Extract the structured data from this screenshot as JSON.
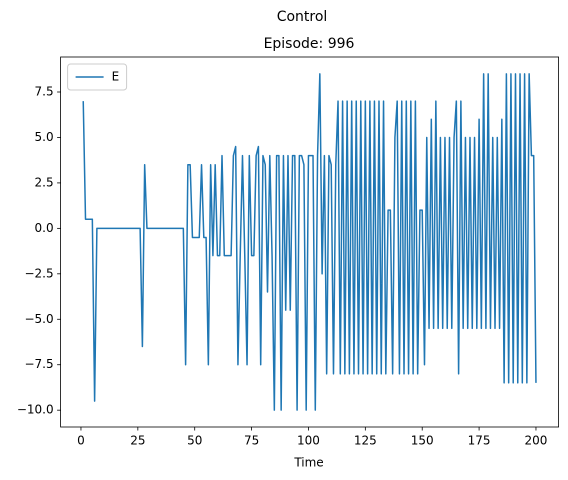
{
  "chart_data": {
    "type": "line",
    "suptitle": "Control",
    "title": "Episode: 996",
    "xlabel": "Time",
    "x": [
      1,
      2,
      3,
      4,
      5,
      6,
      7,
      8,
      9,
      10,
      11,
      12,
      13,
      14,
      15,
      16,
      17,
      18,
      19,
      20,
      21,
      22,
      23,
      24,
      25,
      26,
      27,
      28,
      29,
      30,
      31,
      32,
      33,
      34,
      35,
      36,
      37,
      38,
      39,
      40,
      41,
      42,
      43,
      44,
      45,
      46,
      47,
      48,
      49,
      50,
      51,
      52,
      53,
      54,
      55,
      56,
      57,
      58,
      59,
      60,
      61,
      62,
      63,
      64,
      65,
      66,
      67,
      68,
      69,
      70,
      71,
      72,
      73,
      74,
      75,
      76,
      77,
      78,
      79,
      80,
      81,
      82,
      83,
      84,
      85,
      86,
      87,
      88,
      89,
      90,
      91,
      92,
      93,
      94,
      95,
      96,
      97,
      98,
      99,
      100,
      101,
      102,
      103,
      104,
      105,
      106,
      107,
      108,
      109,
      110,
      111,
      112,
      113,
      114,
      115,
      116,
      117,
      118,
      119,
      120,
      121,
      122,
      123,
      124,
      125,
      126,
      127,
      128,
      129,
      130,
      131,
      132,
      133,
      134,
      135,
      136,
      137,
      138,
      139,
      140,
      141,
      142,
      143,
      144,
      145,
      146,
      147,
      148,
      149,
      150,
      151,
      152,
      153,
      154,
      155,
      156,
      157,
      158,
      159,
      160,
      161,
      162,
      163,
      164,
      165,
      166,
      167,
      168,
      169,
      170,
      171,
      172,
      173,
      174,
      175,
      176,
      177,
      178,
      179,
      180,
      181,
      182,
      183,
      184,
      185,
      186,
      187,
      188,
      189,
      190,
      191,
      192,
      193,
      194,
      195,
      196,
      197,
      198,
      199,
      200
    ],
    "series": [
      {
        "name": "E",
        "color": "#1f77b4",
        "values": [
          7,
          0.5,
          0.5,
          0.5,
          0.5,
          -9.5,
          0,
          0,
          0,
          0,
          0,
          0,
          0,
          0,
          0,
          0,
          0,
          0,
          0,
          0,
          0,
          0,
          0,
          0,
          0,
          0,
          -6.5,
          3.5,
          0,
          0,
          0,
          0,
          0,
          0,
          0,
          0,
          0,
          0,
          0,
          0,
          0,
          0,
          0,
          0,
          0,
          -7.5,
          3.5,
          3.5,
          -0.5,
          -0.5,
          -0.5,
          -0.5,
          3.5,
          -0.5,
          -0.5,
          -7.5,
          3.5,
          -1.5,
          3.5,
          -1.5,
          -1.5,
          4,
          -1.5,
          -1.5,
          -1.5,
          -1.5,
          4,
          4.5,
          -7.5,
          -1.5,
          4,
          -1.5,
          -7.5,
          4,
          -1.5,
          -1.5,
          4,
          4.5,
          -7.5,
          4,
          3.5,
          -3.5,
          4,
          -1.5,
          -10,
          4,
          4,
          -10,
          4,
          -4.5,
          4,
          -4.5,
          4,
          4,
          -10,
          4,
          4,
          3.5,
          -10,
          4,
          4,
          4,
          -10,
          4,
          8.5,
          -2.5,
          4,
          -8,
          4,
          3.5,
          -8,
          3.5,
          7,
          -8,
          7,
          -8,
          7,
          -8,
          7,
          -8,
          7,
          -8,
          7,
          -8,
          7,
          -8,
          7,
          -8,
          7,
          -8,
          7,
          -8,
          7,
          -8,
          1,
          1,
          -8,
          5,
          7,
          -8,
          7,
          -8,
          7,
          -8,
          7,
          -8,
          7,
          -8,
          1,
          1,
          -7.5,
          5,
          -5.5,
          6,
          -5.5,
          7,
          -5.5,
          5,
          -5.5,
          5,
          -5.5,
          5,
          -5.5,
          5,
          7,
          -8,
          7,
          -5.5,
          5,
          -5.5,
          5,
          -5.5,
          5,
          -5.5,
          6,
          -5.5,
          8.5,
          -5.5,
          8.5,
          -5.5,
          5,
          -5.5,
          5,
          -5.5,
          6,
          -8.5,
          8.5,
          -8.5,
          8.5,
          -8.5,
          8.5,
          -8.5,
          8.5,
          -8.5,
          8.5,
          -8.5,
          8.5,
          4,
          4,
          -8.5
        ]
      }
    ],
    "xlim": [
      -8.95,
      209.95
    ],
    "xticks": [
      0,
      25,
      50,
      75,
      100,
      125,
      150,
      175,
      200
    ],
    "ylim": [
      -10.925,
      9.425
    ],
    "yticks": [
      {
        "value": -10,
        "label": "−10.0"
      },
      {
        "value": -7.5,
        "label": "−7.5"
      },
      {
        "value": -5,
        "label": "−5.0"
      },
      {
        "value": -2.5,
        "label": "−2.5"
      },
      {
        "value": 0,
        "label": "0.0"
      },
      {
        "value": 2.5,
        "label": "2.5"
      },
      {
        "value": 5,
        "label": "5.0"
      },
      {
        "value": 7.5,
        "label": "7.5"
      }
    ],
    "grid": false,
    "legend": "upper left"
  }
}
